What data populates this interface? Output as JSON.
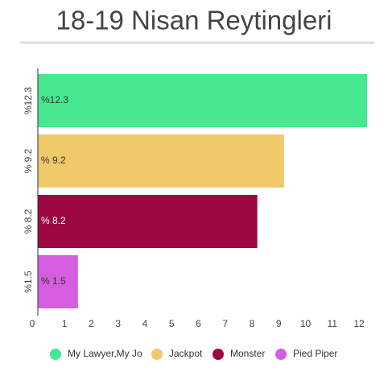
{
  "chart_data": {
    "type": "bar",
    "orientation": "horizontal",
    "title": "18-19 Nisan Reytingleri",
    "categories": [
      "%12.3",
      "% 9.2",
      "% 8.2",
      "%1.5"
    ],
    "values": [
      12.3,
      9.2,
      8.2,
      1.5
    ],
    "value_labels": [
      "%12.3",
      "% 9.2",
      "% 8.2",
      "% 1.5"
    ],
    "colors": [
      "#46e891",
      "#f0c96a",
      "#9c0742",
      "#d55ee0"
    ],
    "legend": [
      "My Lawyer,My Jo",
      "Jackpot",
      "Monster",
      "Pied Piper"
    ],
    "xlim": [
      0,
      12.3
    ],
    "xticks": [
      0,
      1,
      2,
      3,
      4,
      5,
      6,
      7,
      8,
      9,
      10,
      11,
      12
    ]
  }
}
